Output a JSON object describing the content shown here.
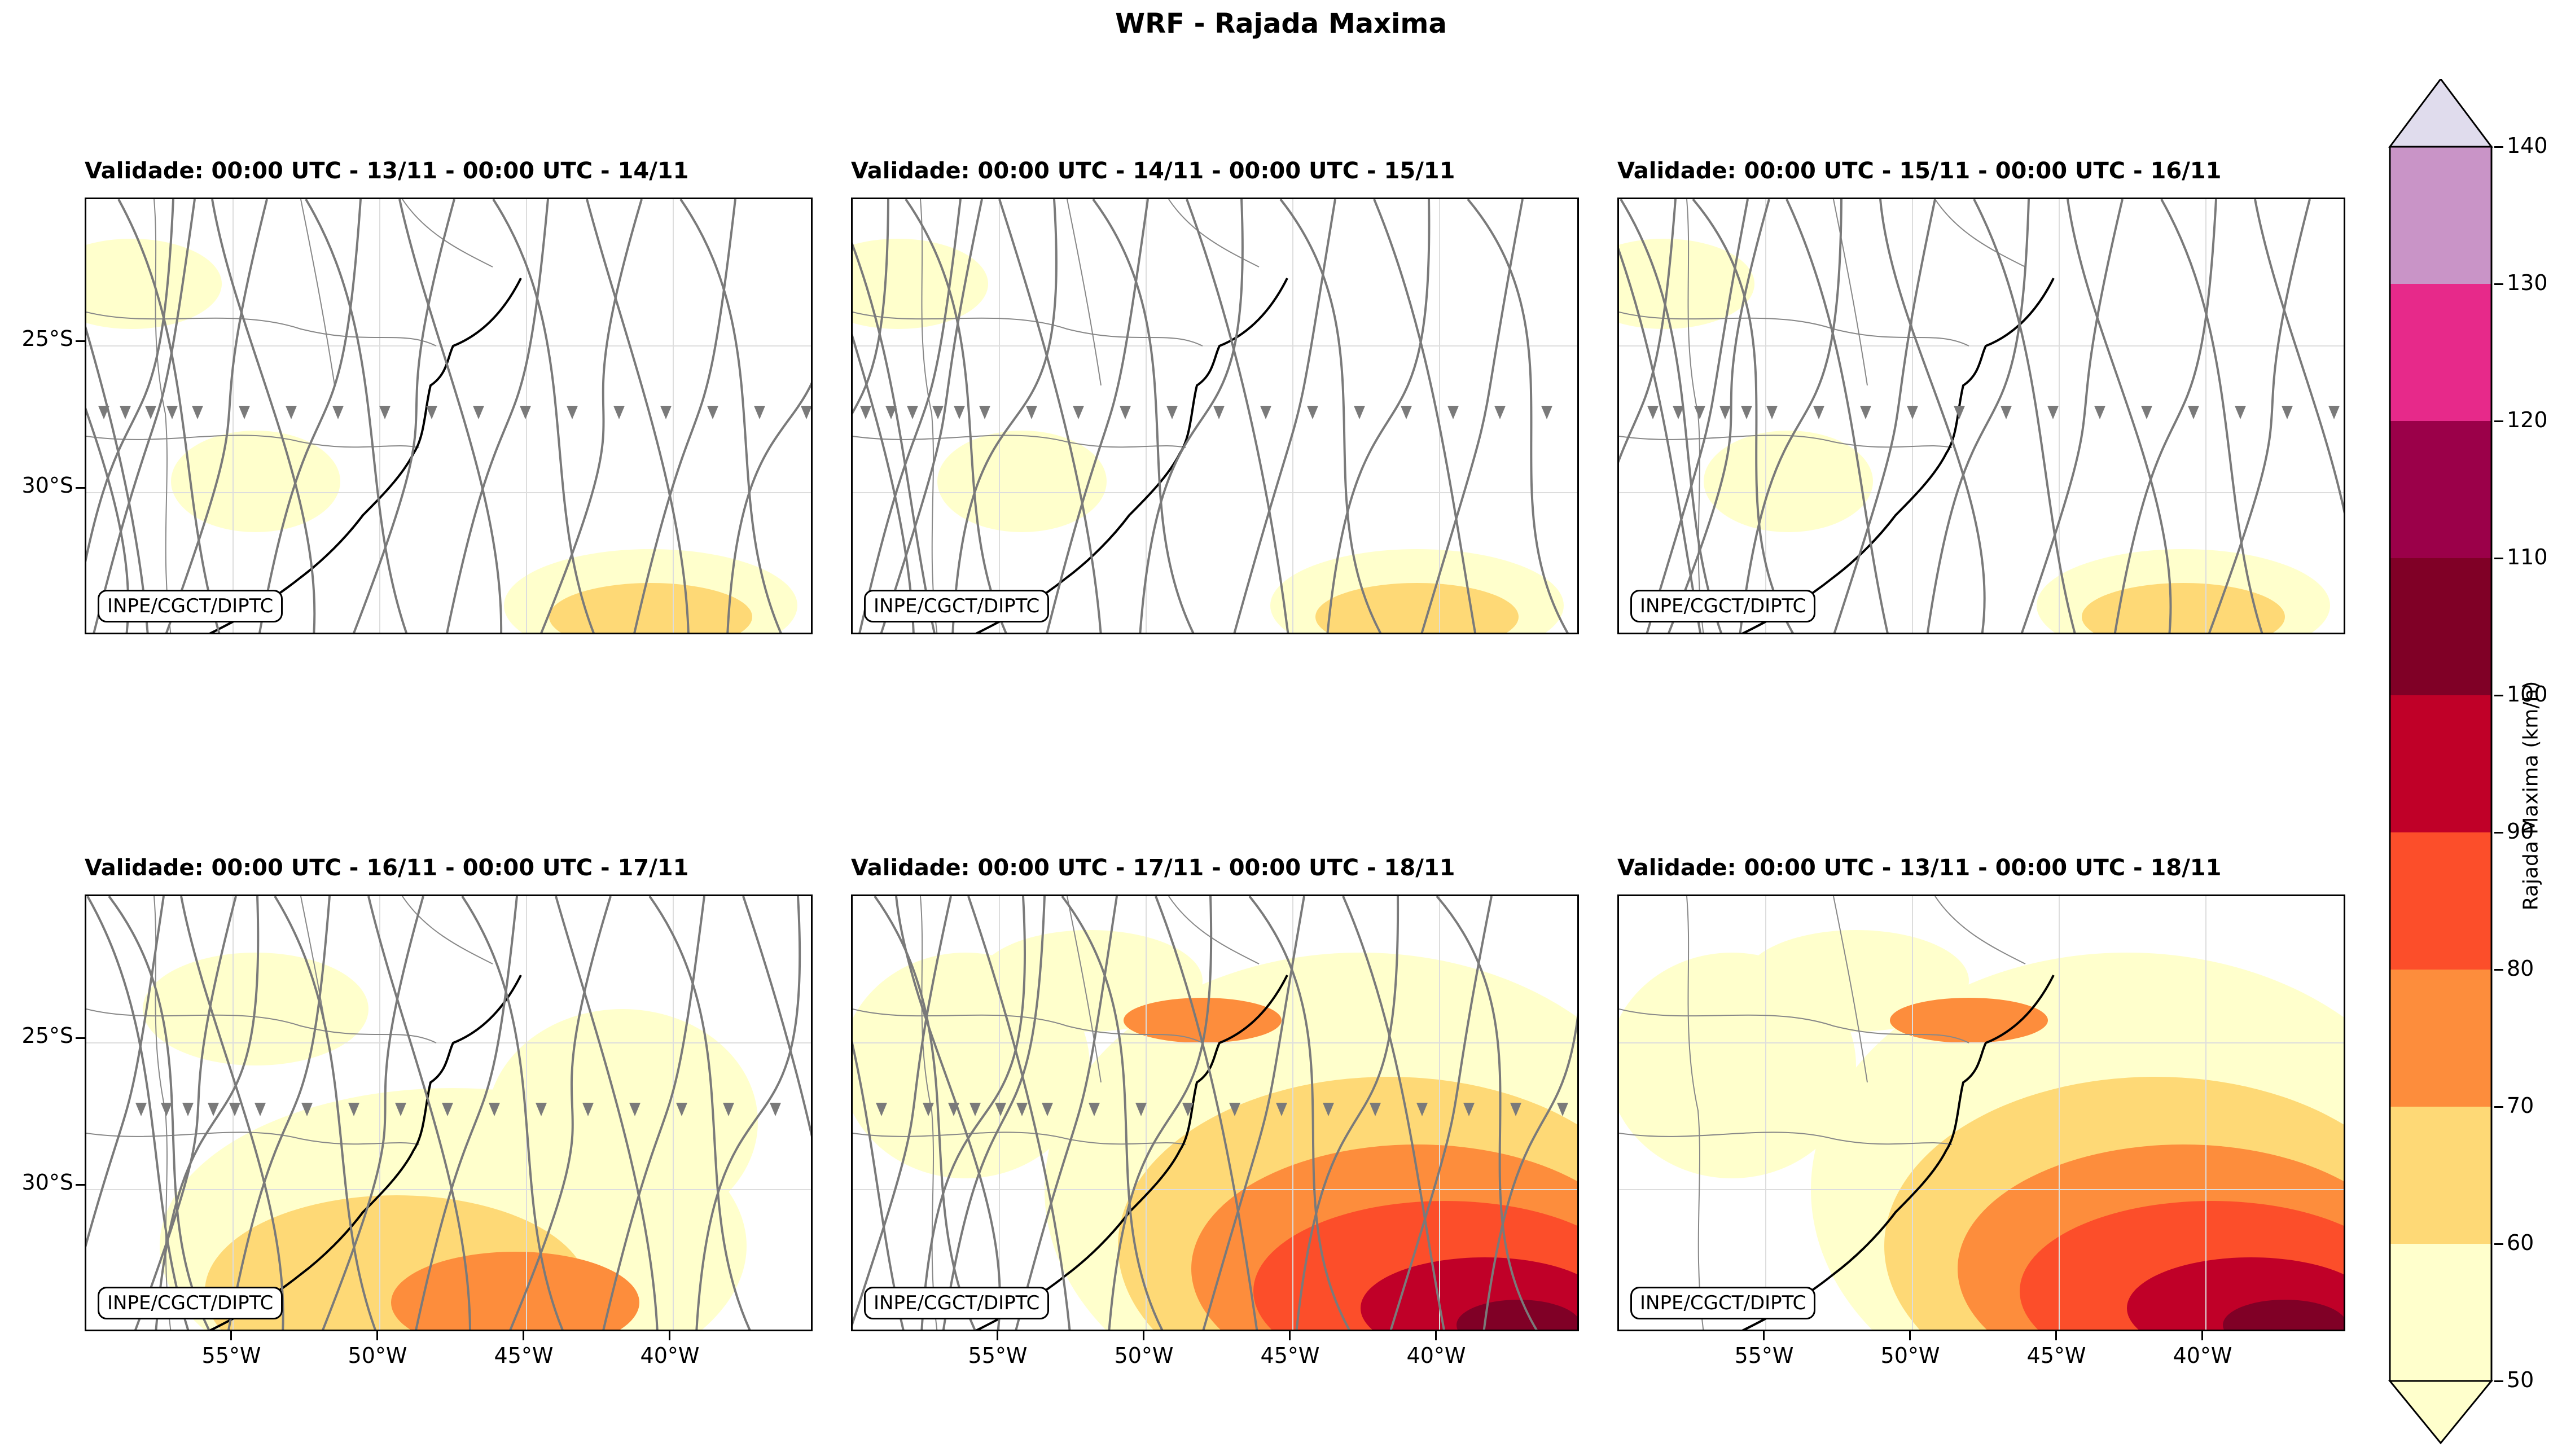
{
  "figure_title": "WRF - Rajada Maxima",
  "credit": "INPE/CGCT/DIPTC",
  "lat_ticks": [
    "25°S",
    "30°S"
  ],
  "lon_ticks": [
    "55°W",
    "50°W",
    "45°W",
    "40°W"
  ],
  "panels": [
    {
      "title": "Validade: 00:00 UTC - 13/11 - 00:00 UTC - 14/11",
      "streamlines": true,
      "intensity": 1
    },
    {
      "title": "Validade: 00:00 UTC - 14/11 - 00:00 UTC - 15/11",
      "streamlines": true,
      "intensity": 1
    },
    {
      "title": "Validade: 00:00 UTC - 15/11 - 00:00 UTC - 16/11",
      "streamlines": true,
      "intensity": 1
    },
    {
      "title": "Validade: 00:00 UTC - 16/11 - 00:00 UTC - 17/11",
      "streamlines": true,
      "intensity": 2
    },
    {
      "title": "Validade: 00:00 UTC - 17/11 - 00:00 UTC - 18/11",
      "streamlines": true,
      "intensity": 4
    },
    {
      "title": "Validade: 00:00 UTC - 13/11 - 00:00 UTC - 18/11",
      "streamlines": false,
      "intensity": 4
    }
  ],
  "colorbar": {
    "label": "Rajada Maxima (km/h)",
    "ticks": [
      "50",
      "60",
      "70",
      "80",
      "90",
      "100",
      "110",
      "120",
      "130",
      "140"
    ],
    "colors": [
      "#ffffcc",
      "#fed976",
      "#fd8d3c",
      "#fc4e2a",
      "#c00028",
      "#800026",
      "#9b0049",
      "#e7298a",
      "#c994c7",
      "#e0dced"
    ]
  },
  "colors": {
    "streamline": "#7a7a7a",
    "coast": "#000000",
    "border": "#888888"
  }
}
